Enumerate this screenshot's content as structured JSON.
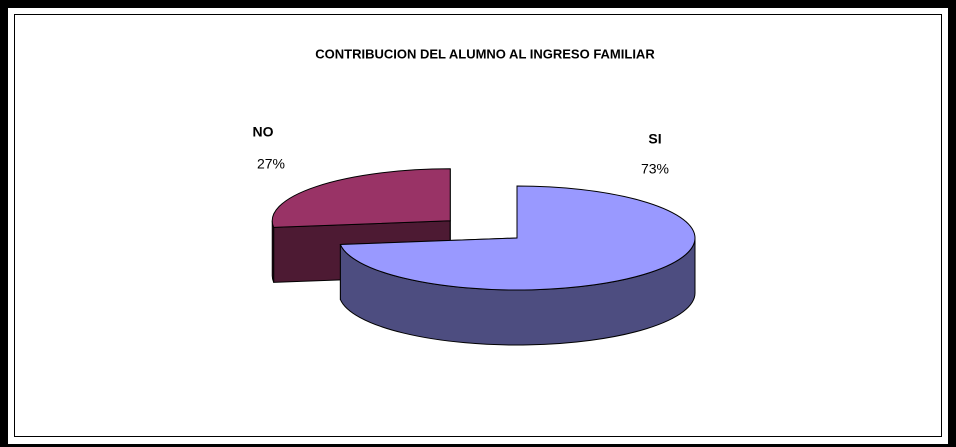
{
  "chart_data": {
    "type": "pie",
    "title": "CONTRIBUCION DEL ALUMNO AL INGRESO FAMILIAR",
    "categories": [
      "SI",
      "NO"
    ],
    "values": [
      73,
      27
    ],
    "value_labels": [
      "73%",
      "27%"
    ],
    "colors": [
      "#9999ff",
      "#993366"
    ]
  }
}
